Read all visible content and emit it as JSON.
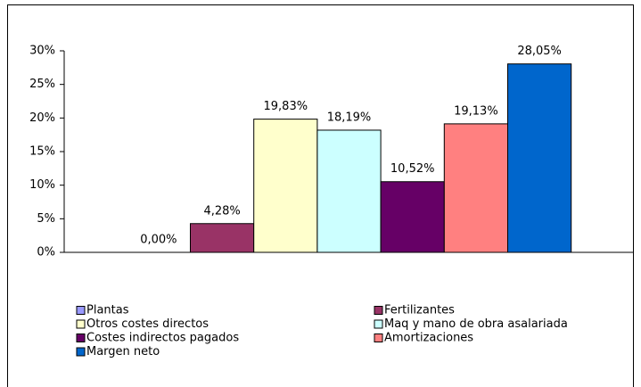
{
  "chart_data": {
    "type": "bar",
    "categories": [
      null
    ],
    "series": [
      {
        "name": "Plantas",
        "color": "#9999ff",
        "values": [
          0
        ],
        "value_labels": [
          "0,00%"
        ]
      },
      {
        "name": "Fertilizantes",
        "color": "#993366",
        "values": [
          4.28
        ],
        "value_labels": [
          "4,28%"
        ]
      },
      {
        "name": "Otros costes directos",
        "color": "#ffffcc",
        "values": [
          19.83
        ],
        "value_labels": [
          "19,83%"
        ]
      },
      {
        "name": "Maq y mano de obra asalariada",
        "color": "#ccffff",
        "values": [
          18.19
        ],
        "value_labels": [
          "18,19%"
        ]
      },
      {
        "name": "Costes indirectos pagados",
        "color": "#660066",
        "values": [
          10.52
        ],
        "value_labels": [
          "10,52%"
        ]
      },
      {
        "name": "Amortizaciones",
        "color": "#ff8080",
        "values": [
          19.13
        ],
        "value_labels": [
          "19,13%"
        ]
      },
      {
        "name": "Margen neto",
        "color": "#0066cc",
        "values": [
          28.05
        ],
        "value_labels": [
          "28,05%"
        ]
      }
    ],
    "ylim": [
      0,
      30
    ],
    "yticks": [
      {
        "value": 0,
        "label": "0%"
      },
      {
        "value": 5,
        "label": "5%"
      },
      {
        "value": 10,
        "label": "10%"
      },
      {
        "value": 15,
        "label": "15%"
      },
      {
        "value": 20,
        "label": "20%"
      },
      {
        "value": 25,
        "label": "25%"
      },
      {
        "value": 30,
        "label": "30%"
      }
    ],
    "grid": false,
    "legend": "bottom"
  }
}
